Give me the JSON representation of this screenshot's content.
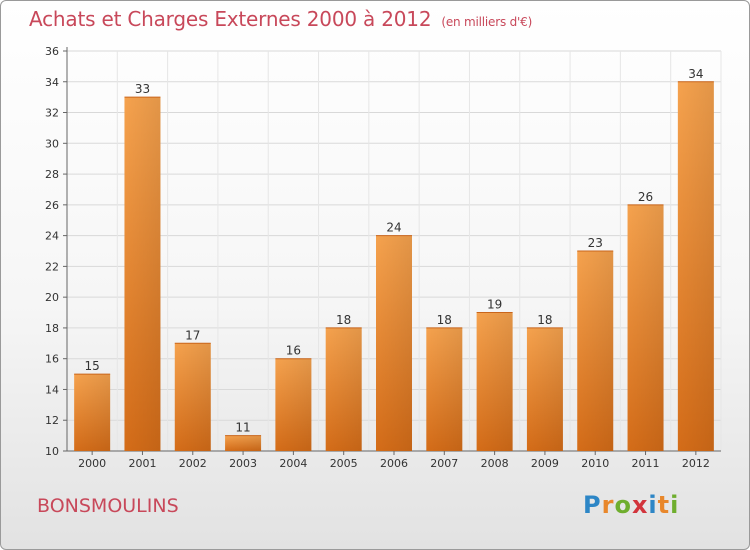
{
  "header": {
    "title": "Achats et Charges Externes 2000 à 2012",
    "unit": "(en milliers d'€)"
  },
  "commune": "BONSMOULINS",
  "brand": {
    "letters": [
      {
        "ch": "P",
        "color": "#2d86c6"
      },
      {
        "ch": "r",
        "color": "#e8872b"
      },
      {
        "ch": "o",
        "color": "#6fae2e"
      },
      {
        "ch": "x",
        "color": "#d2343c"
      },
      {
        "ch": "i",
        "color": "#2d86c6"
      },
      {
        "ch": "t",
        "color": "#e8872b"
      },
      {
        "ch": "i",
        "color": "#6fae2e"
      }
    ]
  },
  "chart_data": {
    "type": "bar",
    "categories": [
      "2000",
      "2001",
      "2002",
      "2003",
      "2004",
      "2005",
      "2006",
      "2007",
      "2008",
      "2009",
      "2010",
      "2011",
      "2012"
    ],
    "values": [
      15,
      33,
      17,
      11,
      16,
      18,
      24,
      18,
      19,
      18,
      23,
      26,
      34
    ],
    "ylim": [
      10,
      36
    ],
    "yticks": [
      10,
      12,
      14,
      16,
      18,
      20,
      22,
      24,
      26,
      28,
      30,
      32,
      34,
      36
    ],
    "grid": true,
    "bar_color": "#e8862e",
    "text_color": "#c8485a"
  }
}
